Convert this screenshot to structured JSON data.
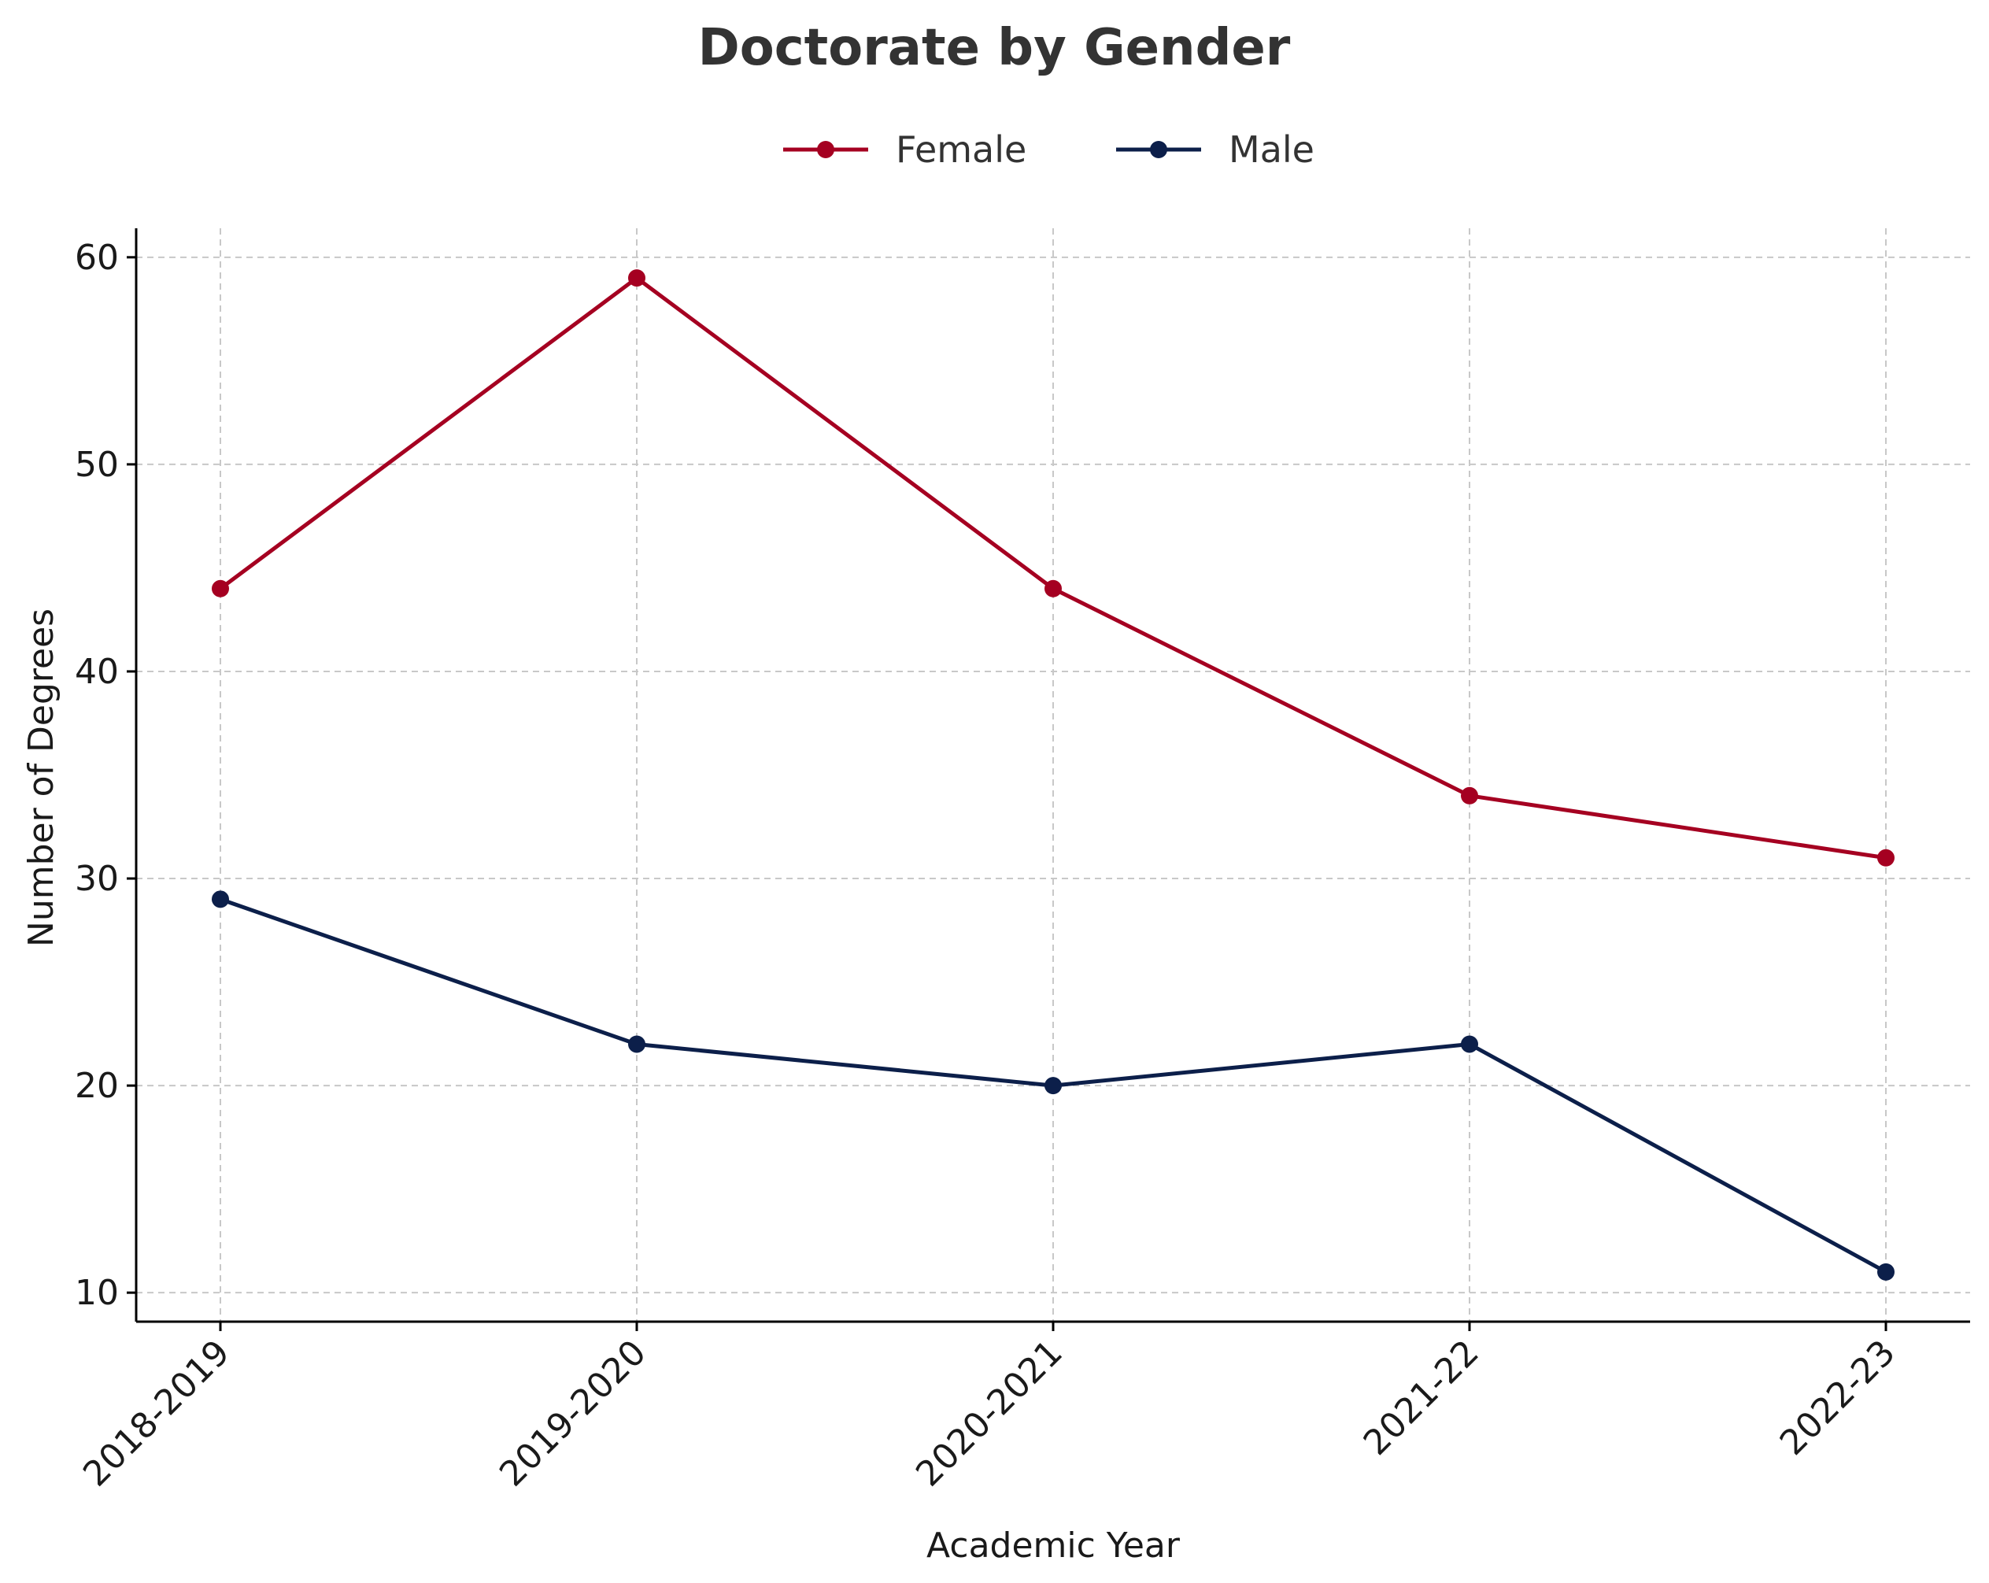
{
  "chart_data": {
    "type": "line",
    "title": "Doctorate by Gender",
    "xlabel": "Academic Year",
    "ylabel": "Number of Degrees",
    "categories": [
      "2018-2019",
      "2019-2020",
      "2020-2021",
      "2021-22",
      "2022-23"
    ],
    "series": [
      {
        "name": "Female",
        "color": "#a50021",
        "values": [
          44,
          59,
          44,
          34,
          31
        ]
      },
      {
        "name": "Male",
        "color": "#0c1f4a",
        "values": [
          29,
          22,
          20,
          22,
          11
        ]
      }
    ],
    "ylim": [
      8.6,
      61.4
    ],
    "yticks": [
      10,
      20,
      30,
      40,
      50,
      60
    ],
    "grid": true,
    "legend_placement": "top-center"
  }
}
